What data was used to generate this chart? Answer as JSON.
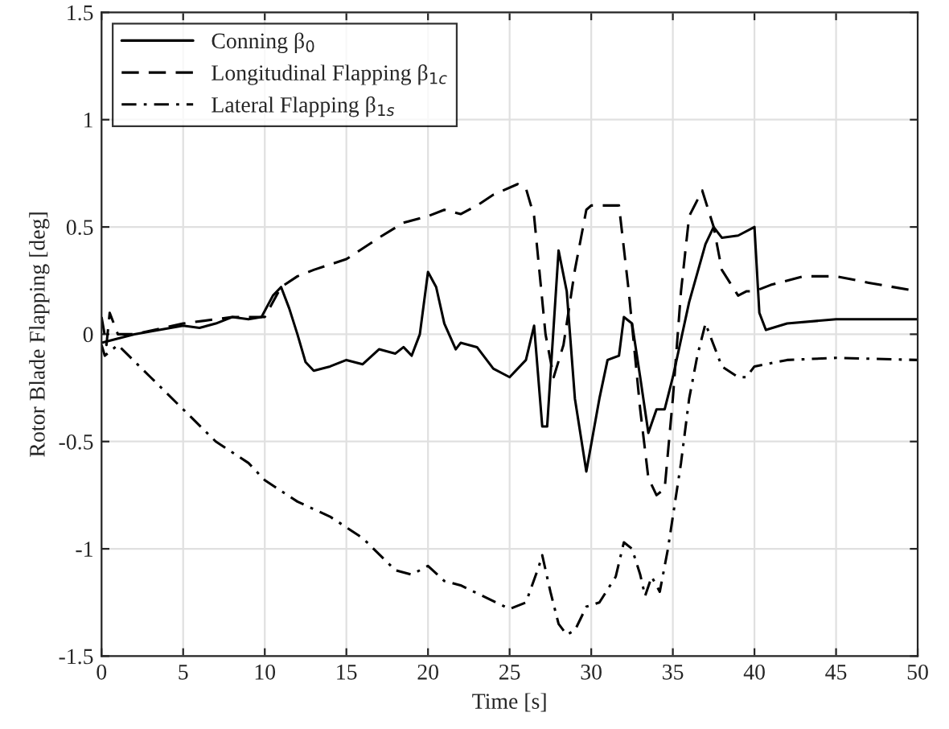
{
  "chart_data": {
    "type": "line",
    "xlabel": "Time [s]",
    "ylabel": "Rotor Blade Flapping [deg]",
    "xlim": [
      0,
      50
    ],
    "ylim": [
      -1.5,
      1.5
    ],
    "xticks": [
      0,
      5,
      10,
      15,
      20,
      25,
      30,
      35,
      40,
      45,
      50
    ],
    "yticks": [
      -1.5,
      -1,
      -0.5,
      0,
      0.5,
      1,
      1.5
    ],
    "grid": true,
    "legend": "top left",
    "marker": "none",
    "series": [
      {
        "name": "Conning β$_{0}$",
        "color": "#000000",
        "line_style": "solid",
        "x": [
          0,
          2,
          5,
          6,
          7,
          8,
          9,
          9.8,
          10.5,
          11,
          11.5,
          12,
          12.5,
          13,
          14,
          15,
          16,
          17,
          18,
          18.5,
          19,
          19.5,
          20,
          20.5,
          21,
          21.7,
          22,
          23,
          24,
          25,
          26,
          26.5,
          27,
          27.3,
          28,
          28.5,
          29,
          29.7,
          30.5,
          31,
          31.7,
          32,
          32.5,
          33,
          33.5,
          34,
          34.5,
          35,
          36,
          37,
          37.5,
          38,
          39,
          40,
          40.3,
          40.7,
          42,
          45,
          50
        ],
        "values": [
          -0.04,
          0.0,
          0.04,
          0.03,
          0.05,
          0.08,
          0.07,
          0.08,
          0.18,
          0.22,
          0.12,
          0.0,
          -0.13,
          -0.17,
          -0.15,
          -0.12,
          -0.14,
          -0.07,
          -0.09,
          -0.06,
          -0.1,
          0.0,
          0.29,
          0.22,
          0.05,
          -0.07,
          -0.04,
          -0.06,
          -0.16,
          -0.2,
          -0.12,
          0.04,
          -0.43,
          -0.43,
          0.39,
          0.2,
          -0.3,
          -0.64,
          -0.3,
          -0.12,
          -0.1,
          0.08,
          0.05,
          -0.2,
          -0.46,
          -0.35,
          -0.35,
          -0.2,
          0.15,
          0.42,
          0.5,
          0.45,
          0.46,
          0.5,
          0.1,
          0.02,
          0.05,
          0.07,
          0.07
        ]
      },
      {
        "name": "Longitudinal Flapping β$_{1c}$",
        "color": "#000000",
        "line_style": "dashed",
        "x": [
          0,
          0.3,
          0.5,
          1,
          2,
          5,
          8,
          10,
          11,
          12,
          13,
          15,
          17,
          18.5,
          20,
          21,
          22,
          23,
          24,
          25.5,
          26,
          26.5,
          27.2,
          27.7,
          28.3,
          29,
          29.7,
          30,
          31,
          31.7,
          32.3,
          33,
          33.5,
          34,
          34.5,
          35,
          35.5,
          36,
          36.8,
          37.5,
          38,
          39,
          39.5,
          40,
          41,
          43,
          45,
          47,
          50
        ],
        "values": [
          0.08,
          -0.05,
          0.1,
          0.0,
          0.0,
          0.05,
          0.08,
          0.08,
          0.22,
          0.27,
          0.3,
          0.35,
          0.45,
          0.52,
          0.55,
          0.58,
          0.56,
          0.6,
          0.65,
          0.7,
          0.68,
          0.55,
          0.0,
          -0.2,
          -0.05,
          0.3,
          0.58,
          0.6,
          0.6,
          0.6,
          0.2,
          -0.35,
          -0.67,
          -0.75,
          -0.72,
          -0.3,
          0.2,
          0.55,
          0.67,
          0.5,
          0.3,
          0.18,
          0.2,
          0.2,
          0.23,
          0.27,
          0.27,
          0.24,
          0.2
        ]
      },
      {
        "name": "Lateral Flapping β$_{1s}$",
        "color": "#000000",
        "line_style": "dashdot",
        "x": [
          0,
          0.2,
          1,
          3,
          5,
          7,
          9,
          10,
          12,
          14,
          16,
          18,
          19,
          20,
          21,
          22,
          25,
          26,
          26.8,
          27,
          27.5,
          28,
          28.5,
          29,
          29.7,
          30.5,
          31.5,
          32,
          32.5,
          33,
          33.3,
          33.7,
          34.2,
          34.7,
          35.5,
          36,
          36.5,
          37,
          37.5,
          38,
          39,
          39.5,
          40,
          42,
          45,
          50
        ],
        "values": [
          -0.05,
          -0.1,
          -0.05,
          -0.2,
          -0.35,
          -0.5,
          -0.6,
          -0.68,
          -0.78,
          -0.85,
          -0.95,
          -1.1,
          -1.12,
          -1.08,
          -1.15,
          -1.17,
          -1.28,
          -1.25,
          -1.08,
          -1.03,
          -1.2,
          -1.35,
          -1.4,
          -1.38,
          -1.27,
          -1.25,
          -1.13,
          -0.97,
          -1.0,
          -1.12,
          -1.22,
          -1.13,
          -1.2,
          -1.0,
          -0.6,
          -0.3,
          -0.1,
          0.05,
          -0.05,
          -0.15,
          -0.2,
          -0.2,
          -0.15,
          -0.12,
          -0.11,
          -0.12
        ]
      }
    ]
  }
}
